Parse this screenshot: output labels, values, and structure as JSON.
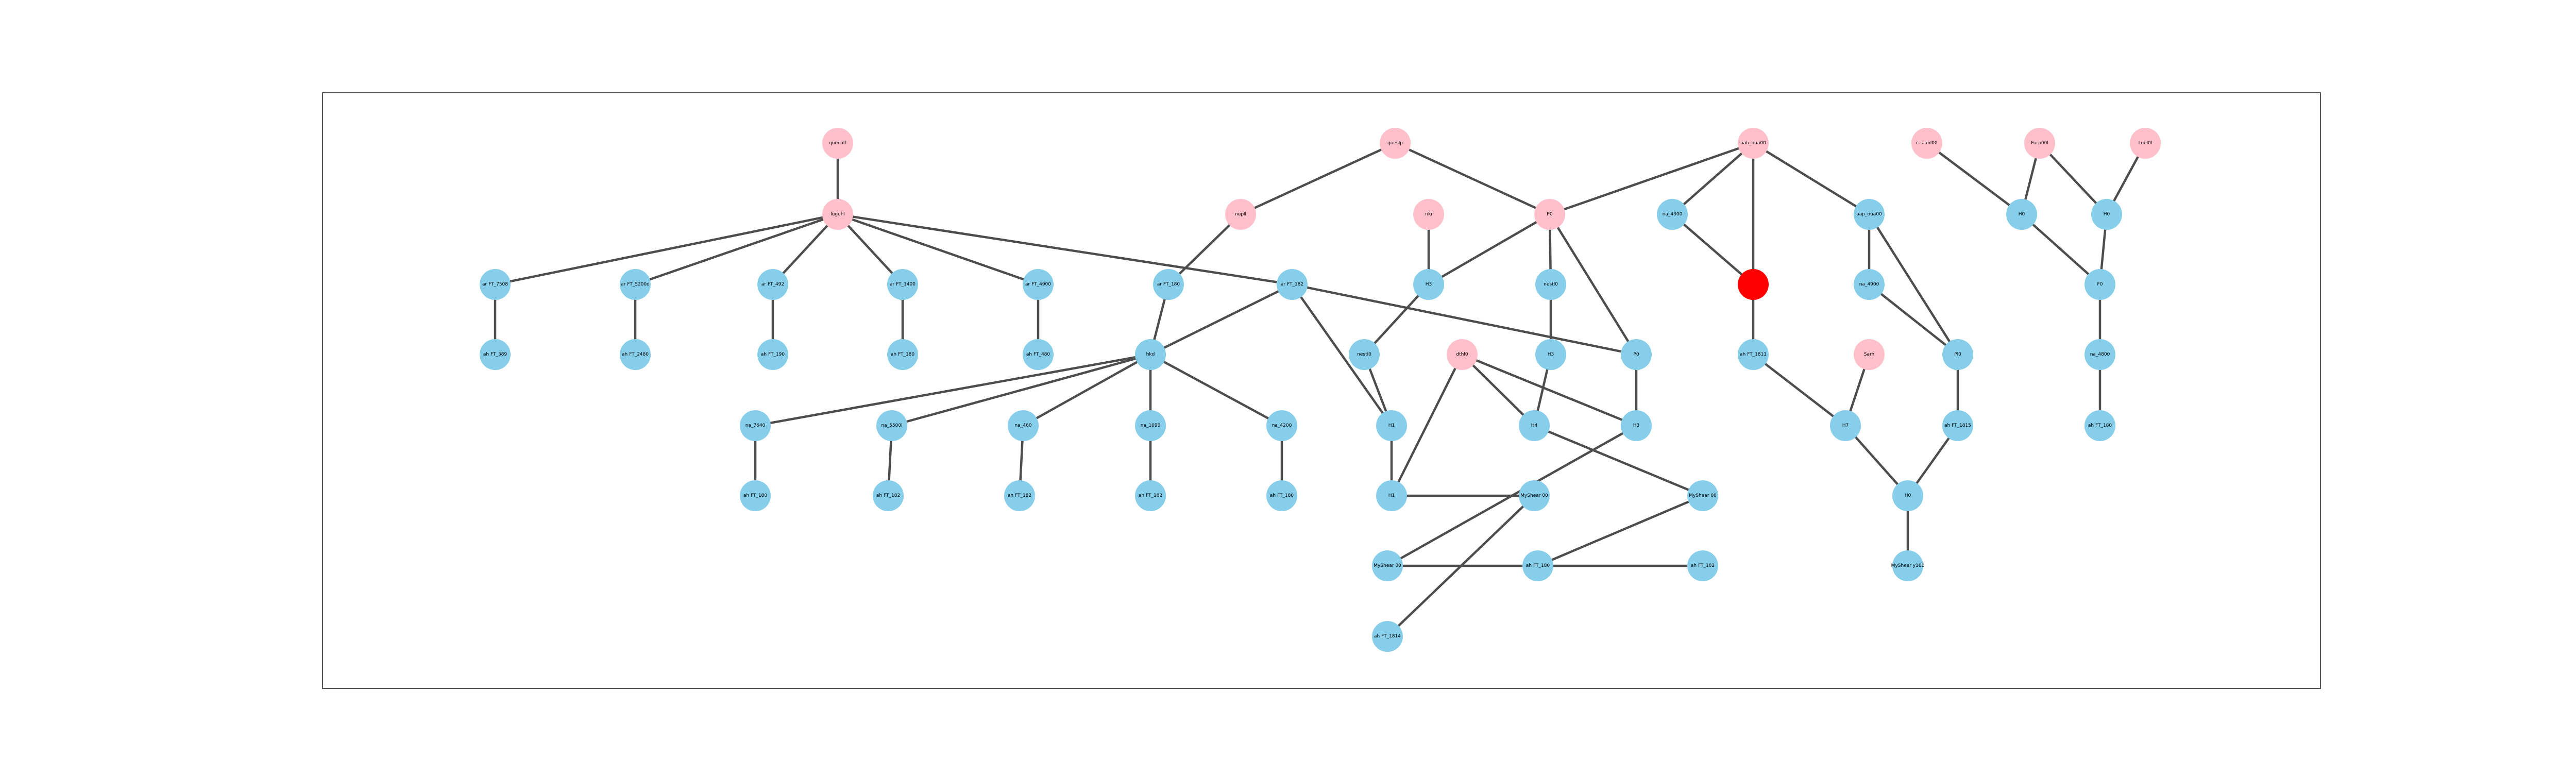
{
  "colors": {
    "default": "#87ceeb",
    "highlight": "#ffc0cb",
    "selected": "#ff0000"
  },
  "nodes": [
    {
      "id": "n1",
      "label": "quercitl",
      "color": "highlight"
    },
    {
      "id": "n2",
      "label": "luguhl",
      "color": "highlight"
    },
    {
      "id": "n3",
      "label": "ar FT_7508",
      "color": "default"
    },
    {
      "id": "n4",
      "label": "ar FT_5200d",
      "color": "default"
    },
    {
      "id": "n5",
      "label": "ar FT_492",
      "color": "default"
    },
    {
      "id": "n6",
      "label": "ar FT_1400",
      "color": "default"
    },
    {
      "id": "n7",
      "label": "ar FT_4900",
      "color": "default"
    },
    {
      "id": "n8",
      "label": "ah FT_389",
      "color": "default"
    },
    {
      "id": "n9",
      "label": "ah FT_2480",
      "color": "default"
    },
    {
      "id": "n10",
      "label": "ah FT_190",
      "color": "default"
    },
    {
      "id": "n11",
      "label": "ah FT_180",
      "color": "default"
    },
    {
      "id": "n12",
      "label": "ah FT_480",
      "color": "default"
    },
    {
      "id": "n13",
      "label": "nupll",
      "color": "highlight"
    },
    {
      "id": "n14",
      "label": "ar FT_180",
      "color": "default"
    },
    {
      "id": "n15",
      "label": "ar FT_182",
      "color": "default"
    },
    {
      "id": "n16",
      "label": "hkd",
      "color": "default"
    },
    {
      "id": "n17",
      "label": "na_7640",
      "color": "default"
    },
    {
      "id": "n18",
      "label": "na_5500l",
      "color": "default"
    },
    {
      "id": "n19",
      "label": "na_460",
      "color": "default"
    },
    {
      "id": "n20",
      "label": "na_1090",
      "color": "default"
    },
    {
      "id": "n21",
      "label": "na_4200",
      "color": "default"
    },
    {
      "id": "n22",
      "label": "ah FT_180",
      "color": "default"
    },
    {
      "id": "n23",
      "label": "ah FT_182",
      "color": "default"
    },
    {
      "id": "n24",
      "label": "ah FT_182",
      "color": "default"
    },
    {
      "id": "n25",
      "label": "ah FT_182",
      "color": "default"
    },
    {
      "id": "n26",
      "label": "ah FT_180",
      "color": "default"
    },
    {
      "id": "n27",
      "label": "queslp",
      "color": "highlight"
    },
    {
      "id": "n28",
      "label": "nki",
      "color": "highlight"
    },
    {
      "id": "n29",
      "label": "P0",
      "color": "highlight"
    },
    {
      "id": "n30",
      "label": "H3",
      "color": "default"
    },
    {
      "id": "n31",
      "label": "nestl0",
      "color": "default"
    },
    {
      "id": "n32",
      "label": "P0",
      "color": "default"
    },
    {
      "id": "n33",
      "label": "nestl0",
      "color": "default"
    },
    {
      "id": "n34",
      "label": "dthl0",
      "color": "highlight"
    },
    {
      "id": "n35",
      "label": "H3",
      "color": "default"
    },
    {
      "id": "n36",
      "label": "H1",
      "color": "default"
    },
    {
      "id": "n37",
      "label": "H4",
      "color": "default"
    },
    {
      "id": "n38",
      "label": "H3",
      "color": "default"
    },
    {
      "id": "n39",
      "label": "H1",
      "color": "default"
    },
    {
      "id": "n40",
      "label": "MyShear 00",
      "color": "default"
    },
    {
      "id": "n41",
      "label": "MyShear 00",
      "color": "default"
    },
    {
      "id": "n42",
      "label": "MyShear 00",
      "color": "default"
    },
    {
      "id": "n43",
      "label": "ah FT_180",
      "color": "default"
    },
    {
      "id": "n44",
      "label": "ah FT_182",
      "color": "default"
    },
    {
      "id": "n45",
      "label": "ah FT_1814",
      "color": "default"
    },
    {
      "id": "n46",
      "label": "aah_hua00",
      "color": "highlight"
    },
    {
      "id": "n47",
      "label": "na_4300",
      "color": "default"
    },
    {
      "id": "n48",
      "label": "",
      "color": "selected"
    },
    {
      "id": "n49",
      "label": "aap_oua00",
      "color": "default"
    },
    {
      "id": "n50",
      "label": "na_4900",
      "color": "default"
    },
    {
      "id": "n51",
      "label": "ah FT_1811",
      "color": "default"
    },
    {
      "id": "n52",
      "label": "Sarh",
      "color": "highlight"
    },
    {
      "id": "n53",
      "label": "Pl0",
      "color": "default"
    },
    {
      "id": "n54",
      "label": "H7",
      "color": "default"
    },
    {
      "id": "n55",
      "label": "ah FT_1815",
      "color": "default"
    },
    {
      "id": "n56",
      "label": "H0",
      "color": "default"
    },
    {
      "id": "n57",
      "label": "MyShear y100",
      "color": "default"
    },
    {
      "id": "n58",
      "label": "c-s-unl00",
      "color": "highlight"
    },
    {
      "id": "n59",
      "label": "Furp00l",
      "color": "highlight"
    },
    {
      "id": "n60",
      "label": "Luel0l",
      "color": "highlight"
    },
    {
      "id": "n61",
      "label": "H0",
      "color": "default"
    },
    {
      "id": "n62",
      "label": "H0",
      "color": "default"
    },
    {
      "id": "n63",
      "label": "F0",
      "color": "default"
    },
    {
      "id": "n64",
      "label": "na_4800",
      "color": "default"
    },
    {
      "id": "n65",
      "label": "ah FT_180",
      "color": "default"
    }
  ],
  "edges": [
    [
      "n1",
      "n2"
    ],
    [
      "n2",
      "n3"
    ],
    [
      "n2",
      "n4"
    ],
    [
      "n2",
      "n5"
    ],
    [
      "n2",
      "n6"
    ],
    [
      "n2",
      "n7"
    ],
    [
      "n2",
      "n15"
    ],
    [
      "n3",
      "n8"
    ],
    [
      "n4",
      "n9"
    ],
    [
      "n5",
      "n10"
    ],
    [
      "n6",
      "n11"
    ],
    [
      "n7",
      "n12"
    ],
    [
      "n13",
      "n14"
    ],
    [
      "n14",
      "n16"
    ],
    [
      "n15",
      "n16"
    ],
    [
      "n16",
      "n17"
    ],
    [
      "n16",
      "n18"
    ],
    [
      "n16",
      "n19"
    ],
    [
      "n16",
      "n20"
    ],
    [
      "n16",
      "n21"
    ],
    [
      "n17",
      "n22"
    ],
    [
      "n18",
      "n23"
    ],
    [
      "n19",
      "n24"
    ],
    [
      "n20",
      "n25"
    ],
    [
      "n21",
      "n26"
    ],
    [
      "n27",
      "n13"
    ],
    [
      "n27",
      "n29"
    ],
    [
      "n28",
      "n30"
    ],
    [
      "n29",
      "n30"
    ],
    [
      "n29",
      "n31"
    ],
    [
      "n29",
      "n32"
    ],
    [
      "n30",
      "n33"
    ],
    [
      "n31",
      "n35"
    ],
    [
      "n15",
      "n32"
    ],
    [
      "n15",
      "n36"
    ],
    [
      "n33",
      "n36"
    ],
    [
      "n34",
      "n37"
    ],
    [
      "n34",
      "n38"
    ],
    [
      "n34",
      "n39"
    ],
    [
      "n35",
      "n37"
    ],
    [
      "n32",
      "n38"
    ],
    [
      "n36",
      "n39"
    ],
    [
      "n39",
      "n40"
    ],
    [
      "n37",
      "n41"
    ],
    [
      "n38",
      "n42"
    ],
    [
      "n41",
      "n43"
    ],
    [
      "n42",
      "n44"
    ],
    [
      "n40",
      "n45"
    ],
    [
      "n46",
      "n29"
    ],
    [
      "n46",
      "n47"
    ],
    [
      "n46",
      "n48"
    ],
    [
      "n46",
      "n49"
    ],
    [
      "n47",
      "n48"
    ],
    [
      "n48",
      "n51"
    ],
    [
      "n49",
      "n50"
    ],
    [
      "n49",
      "n53"
    ],
    [
      "n50",
      "n53"
    ],
    [
      "n51",
      "n54"
    ],
    [
      "n52",
      "n54"
    ],
    [
      "n53",
      "n55"
    ],
    [
      "n54",
      "n56"
    ],
    [
      "n55",
      "n56"
    ],
    [
      "n56",
      "n57"
    ],
    [
      "n59",
      "n61"
    ],
    [
      "n58",
      "n61"
    ],
    [
      "n59",
      "n62"
    ],
    [
      "n60",
      "n62"
    ],
    [
      "n61",
      "n63"
    ],
    [
      "n62",
      "n63"
    ],
    [
      "n63",
      "n64"
    ],
    [
      "n64",
      "n65"
    ]
  ]
}
